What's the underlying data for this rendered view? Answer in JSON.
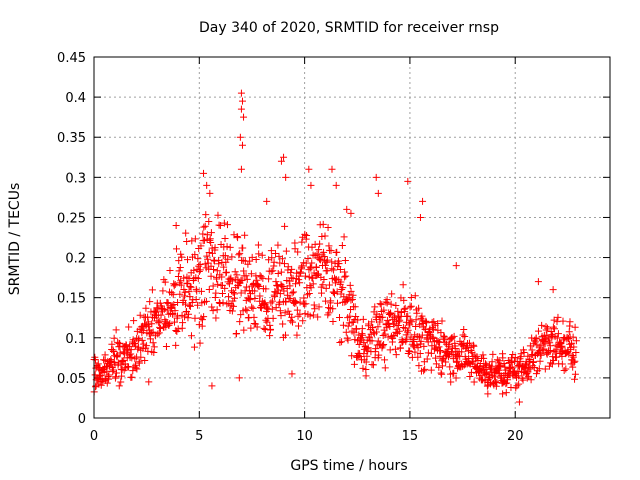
{
  "chart_data": {
    "type": "scatter",
    "title": "Day 340 of 2020, SRMTID for receiver rnsp",
    "xlabel": "GPS time / hours",
    "ylabel": "SRMTID / TECUs",
    "xlim": [
      0,
      24.5
    ],
    "ylim": [
      0,
      0.45
    ],
    "xticks": [
      0,
      5,
      10,
      15,
      20
    ],
    "yticks": [
      0,
      0.05,
      0.1,
      0.15,
      0.2,
      0.25,
      0.3,
      0.35,
      0.4,
      0.45
    ],
    "grid": true,
    "marker": "+",
    "color": "#ff0000",
    "trend": [
      [
        0.0,
        0.055
      ],
      [
        0.5,
        0.06
      ],
      [
        1.0,
        0.075
      ],
      [
        1.5,
        0.075
      ],
      [
        2.0,
        0.085
      ],
      [
        2.5,
        0.11
      ],
      [
        3.0,
        0.12
      ],
      [
        3.5,
        0.13
      ],
      [
        4.0,
        0.15
      ],
      [
        4.5,
        0.16
      ],
      [
        5.0,
        0.18
      ],
      [
        5.5,
        0.2
      ],
      [
        6.0,
        0.18
      ],
      [
        6.5,
        0.17
      ],
      [
        7.0,
        0.17
      ],
      [
        7.5,
        0.16
      ],
      [
        8.0,
        0.15
      ],
      [
        8.5,
        0.16
      ],
      [
        9.0,
        0.16
      ],
      [
        9.5,
        0.16
      ],
      [
        10.0,
        0.17
      ],
      [
        10.5,
        0.18
      ],
      [
        11.0,
        0.18
      ],
      [
        11.5,
        0.17
      ],
      [
        12.0,
        0.15
      ],
      [
        12.5,
        0.1
      ],
      [
        13.0,
        0.09
      ],
      [
        13.5,
        0.11
      ],
      [
        14.0,
        0.11
      ],
      [
        14.5,
        0.12
      ],
      [
        15.0,
        0.12
      ],
      [
        15.5,
        0.1
      ],
      [
        16.0,
        0.09
      ],
      [
        16.5,
        0.09
      ],
      [
        17.0,
        0.08
      ],
      [
        17.5,
        0.08
      ],
      [
        18.0,
        0.07
      ],
      [
        18.5,
        0.06
      ],
      [
        19.0,
        0.055
      ],
      [
        19.5,
        0.055
      ],
      [
        20.0,
        0.06
      ],
      [
        20.5,
        0.065
      ],
      [
        21.0,
        0.08
      ],
      [
        21.5,
        0.1
      ],
      [
        22.0,
        0.09
      ],
      [
        22.5,
        0.085
      ],
      [
        22.9,
        0.085
      ]
    ],
    "notable_points": [
      [
        7.0,
        0.405
      ],
      [
        7.05,
        0.395
      ],
      [
        7.0,
        0.385
      ],
      [
        7.1,
        0.375
      ],
      [
        6.95,
        0.35
      ],
      [
        7.05,
        0.34
      ],
      [
        7.0,
        0.31
      ],
      [
        9.0,
        0.325
      ],
      [
        8.9,
        0.32
      ],
      [
        9.1,
        0.3
      ],
      [
        5.2,
        0.305
      ],
      [
        5.35,
        0.29
      ],
      [
        5.5,
        0.28
      ],
      [
        10.2,
        0.31
      ],
      [
        10.3,
        0.29
      ],
      [
        11.3,
        0.31
      ],
      [
        11.5,
        0.29
      ],
      [
        13.4,
        0.3
      ],
      [
        14.9,
        0.295
      ],
      [
        15.6,
        0.27
      ],
      [
        15.5,
        0.25
      ],
      [
        12.0,
        0.26
      ],
      [
        12.2,
        0.255
      ],
      [
        8.2,
        0.27
      ],
      [
        3.9,
        0.24
      ],
      [
        13.5,
        0.28
      ],
      [
        4.4,
        0.22
      ],
      [
        17.2,
        0.19
      ],
      [
        21.1,
        0.17
      ],
      [
        21.8,
        0.16
      ],
      [
        22.6,
        0.12
      ],
      [
        6.9,
        0.05
      ],
      [
        5.6,
        0.04
      ],
      [
        9.4,
        0.055
      ],
      [
        1.2,
        0.04
      ],
      [
        19.4,
        0.03
      ],
      [
        20.2,
        0.02
      ],
      [
        0.1,
        0.04
      ],
      [
        18.7,
        0.03
      ],
      [
        2.6,
        0.045
      ]
    ]
  }
}
